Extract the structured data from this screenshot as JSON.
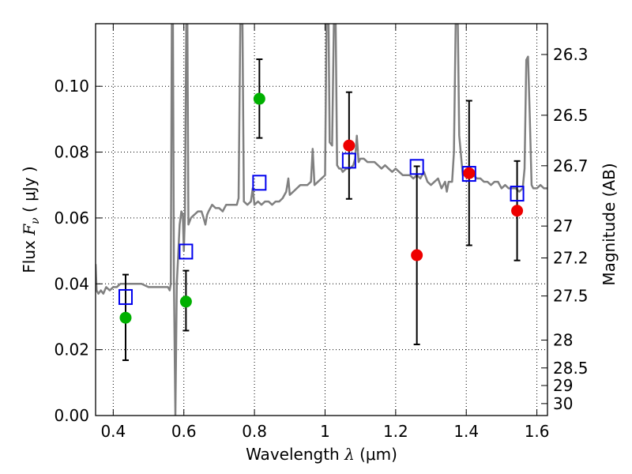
{
  "chart_data": {
    "type": "scatter",
    "xlabel_prefix": "Wavelength",
    "xlabel_symbol": "λ",
    "xlabel_unit": "(μm)",
    "ylabel_prefix": "Flux",
    "ylabel_symbol": "F",
    "ylabel_subscript": "ν",
    "ylabel_unit": "( μJy )",
    "y2label": "Magnitude (AB)",
    "xlim": [
      0.35,
      1.63
    ],
    "ylim": [
      0.0,
      0.119
    ],
    "x_ticks": [
      {
        "value": 0.4,
        "label": "0.4"
      },
      {
        "value": 0.6,
        "label": "0.6"
      },
      {
        "value": 0.8,
        "label": "0.8"
      },
      {
        "value": 1.0,
        "label": "1"
      },
      {
        "value": 1.2,
        "label": "1.2"
      },
      {
        "value": 1.4,
        "label": "1.4"
      },
      {
        "value": 1.6,
        "label": "1.6"
      }
    ],
    "y_ticks": [
      {
        "value": 0.0,
        "label": "0.00"
      },
      {
        "value": 0.02,
        "label": "0.02"
      },
      {
        "value": 0.04,
        "label": "0.04"
      },
      {
        "value": 0.06,
        "label": "0.06"
      },
      {
        "value": 0.08,
        "label": "0.08"
      },
      {
        "value": 0.1,
        "label": "0.10"
      }
    ],
    "mag_ticks": [
      "26.3",
      "26.5",
      "26.7",
      "27",
      "27.2",
      "27.5",
      "28",
      "28.5",
      "29",
      "30"
    ],
    "grid": true,
    "colors": {
      "model": "#808080",
      "green": "#00b000",
      "red": "#ee0000",
      "blue": "#0000ee",
      "errorbar": "#000000"
    },
    "green_points": [
      {
        "x": 0.435,
        "y": 0.0297,
        "err_low": 0.0168,
        "err_high": 0.0428
      },
      {
        "x": 0.606,
        "y": 0.0346,
        "err_low": 0.0258,
        "err_high": 0.044
      },
      {
        "x": 0.814,
        "y": 0.0962,
        "err_low": 0.0843,
        "err_high": 0.1082
      }
    ],
    "red_points": [
      {
        "x": 1.068,
        "y": 0.082,
        "err_low": 0.0658,
        "err_high": 0.0982
      },
      {
        "x": 1.26,
        "y": 0.0487,
        "err_low": 0.0216,
        "err_high": 0.0757
      },
      {
        "x": 1.408,
        "y": 0.0736,
        "err_low": 0.0517,
        "err_high": 0.0956
      },
      {
        "x": 1.544,
        "y": 0.0622,
        "err_low": 0.0471,
        "err_high": 0.0773
      }
    ],
    "model_points": [
      {
        "x": 0.435,
        "y": 0.036
      },
      {
        "x": 0.606,
        "y": 0.0498
      },
      {
        "x": 0.814,
        "y": 0.0707
      },
      {
        "x": 1.068,
        "y": 0.0774
      },
      {
        "x": 1.26,
        "y": 0.0755
      },
      {
        "x": 1.408,
        "y": 0.0734
      },
      {
        "x": 1.544,
        "y": 0.0674
      }
    ],
    "model_spectrum": [
      [
        0.35,
        0.046
      ],
      [
        0.353,
        0.038
      ],
      [
        0.358,
        0.037
      ],
      [
        0.365,
        0.038
      ],
      [
        0.372,
        0.037
      ],
      [
        0.38,
        0.039
      ],
      [
        0.39,
        0.038
      ],
      [
        0.4,
        0.039
      ],
      [
        0.41,
        0.039
      ],
      [
        0.42,
        0.04
      ],
      [
        0.44,
        0.04
      ],
      [
        0.46,
        0.04
      ],
      [
        0.48,
        0.04
      ],
      [
        0.5,
        0.039
      ],
      [
        0.52,
        0.039
      ],
      [
        0.54,
        0.039
      ],
      [
        0.555,
        0.039
      ],
      [
        0.56,
        0.038
      ],
      [
        0.563,
        0.04
      ],
      [
        0.566,
        0.119
      ],
      [
        0.569,
        0.119
      ],
      [
        0.572,
        0.04
      ],
      [
        0.576,
        0.0
      ],
      [
        0.58,
        0.04
      ],
      [
        0.588,
        0.058
      ],
      [
        0.593,
        0.062
      ],
      [
        0.597,
        0.061
      ],
      [
        0.6,
        0.05
      ],
      [
        0.603,
        0.061
      ],
      [
        0.607,
        0.119
      ],
      [
        0.61,
        0.119
      ],
      [
        0.613,
        0.058
      ],
      [
        0.62,
        0.06
      ],
      [
        0.63,
        0.061
      ],
      [
        0.64,
        0.062
      ],
      [
        0.65,
        0.062
      ],
      [
        0.656,
        0.06
      ],
      [
        0.661,
        0.058
      ],
      [
        0.666,
        0.061
      ],
      [
        0.67,
        0.062
      ],
      [
        0.68,
        0.064
      ],
      [
        0.69,
        0.063
      ],
      [
        0.7,
        0.063
      ],
      [
        0.71,
        0.062
      ],
      [
        0.72,
        0.064
      ],
      [
        0.73,
        0.064
      ],
      [
        0.74,
        0.064
      ],
      [
        0.75,
        0.064
      ],
      [
        0.755,
        0.066
      ],
      [
        0.76,
        0.119
      ],
      [
        0.766,
        0.119
      ],
      [
        0.77,
        0.065
      ],
      [
        0.78,
        0.064
      ],
      [
        0.79,
        0.065
      ],
      [
        0.795,
        0.069
      ],
      [
        0.8,
        0.064
      ],
      [
        0.81,
        0.065
      ],
      [
        0.82,
        0.064
      ],
      [
        0.83,
        0.065
      ],
      [
        0.84,
        0.065
      ],
      [
        0.85,
        0.064
      ],
      [
        0.86,
        0.065
      ],
      [
        0.87,
        0.065
      ],
      [
        0.88,
        0.066
      ],
      [
        0.89,
        0.068
      ],
      [
        0.896,
        0.072
      ],
      [
        0.9,
        0.067
      ],
      [
        0.91,
        0.068
      ],
      [
        0.92,
        0.069
      ],
      [
        0.93,
        0.07
      ],
      [
        0.94,
        0.07
      ],
      [
        0.95,
        0.07
      ],
      [
        0.96,
        0.071
      ],
      [
        0.965,
        0.081
      ],
      [
        0.97,
        0.07
      ],
      [
        0.98,
        0.071
      ],
      [
        0.99,
        0.072
      ],
      [
        1.0,
        0.073
      ],
      [
        1.004,
        0.119
      ],
      [
        1.01,
        0.119
      ],
      [
        1.013,
        0.083
      ],
      [
        1.02,
        0.082
      ],
      [
        1.025,
        0.119
      ],
      [
        1.03,
        0.119
      ],
      [
        1.034,
        0.076
      ],
      [
        1.04,
        0.075
      ],
      [
        1.045,
        0.075
      ],
      [
        1.05,
        0.074
      ],
      [
        1.06,
        0.075
      ],
      [
        1.07,
        0.075
      ],
      [
        1.08,
        0.076
      ],
      [
        1.085,
        0.078
      ],
      [
        1.09,
        0.085
      ],
      [
        1.095,
        0.077
      ],
      [
        1.1,
        0.078
      ],
      [
        1.11,
        0.078
      ],
      [
        1.12,
        0.077
      ],
      [
        1.13,
        0.077
      ],
      [
        1.14,
        0.077
      ],
      [
        1.15,
        0.076
      ],
      [
        1.16,
        0.075
      ],
      [
        1.17,
        0.076
      ],
      [
        1.18,
        0.075
      ],
      [
        1.19,
        0.074
      ],
      [
        1.2,
        0.075
      ],
      [
        1.21,
        0.074
      ],
      [
        1.22,
        0.073
      ],
      [
        1.23,
        0.073
      ],
      [
        1.24,
        0.073
      ],
      [
        1.25,
        0.072
      ],
      [
        1.26,
        0.073
      ],
      [
        1.27,
        0.072
      ],
      [
        1.28,
        0.074
      ],
      [
        1.29,
        0.071
      ],
      [
        1.3,
        0.07
      ],
      [
        1.31,
        0.071
      ],
      [
        1.32,
        0.072
      ],
      [
        1.33,
        0.069
      ],
      [
        1.34,
        0.071
      ],
      [
        1.345,
        0.068
      ],
      [
        1.35,
        0.071
      ],
      [
        1.36,
        0.071
      ],
      [
        1.365,
        0.08
      ],
      [
        1.37,
        0.119
      ],
      [
        1.376,
        0.119
      ],
      [
        1.38,
        0.085
      ],
      [
        1.39,
        0.073
      ],
      [
        1.4,
        0.074
      ],
      [
        1.41,
        0.074
      ],
      [
        1.42,
        0.073
      ],
      [
        1.43,
        0.072
      ],
      [
        1.44,
        0.072
      ],
      [
        1.45,
        0.071
      ],
      [
        1.46,
        0.071
      ],
      [
        1.47,
        0.07
      ],
      [
        1.48,
        0.071
      ],
      [
        1.49,
        0.071
      ],
      [
        1.5,
        0.069
      ],
      [
        1.51,
        0.07
      ],
      [
        1.52,
        0.069
      ],
      [
        1.53,
        0.069
      ],
      [
        1.54,
        0.069
      ],
      [
        1.55,
        0.068
      ],
      [
        1.56,
        0.069
      ],
      [
        1.565,
        0.075
      ],
      [
        1.57,
        0.108
      ],
      [
        1.575,
        0.109
      ],
      [
        1.58,
        0.09
      ],
      [
        1.585,
        0.07
      ],
      [
        1.59,
        0.069
      ],
      [
        1.6,
        0.069
      ],
      [
        1.61,
        0.07
      ],
      [
        1.62,
        0.069
      ],
      [
        1.63,
        0.069
      ]
    ]
  }
}
